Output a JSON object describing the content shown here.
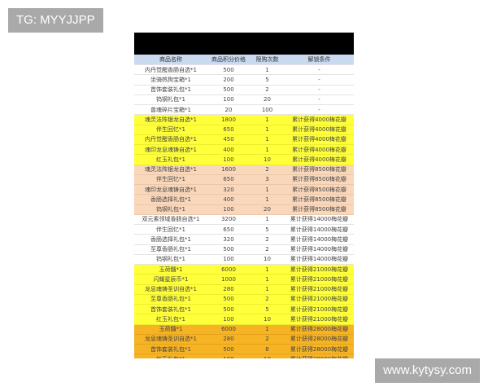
{
  "watermarks": {
    "top_left": "TG: MYYJJPP",
    "bottom_right": "www.kytysy.com"
  },
  "colors": {
    "header": "#c9d9ef",
    "yellow": "#ffff3a",
    "peach": "#f9d7bb",
    "orange": "#f6b324"
  },
  "table": {
    "headers": [
      "商品名称",
      "商品积分价格",
      "限购次数",
      "解锁条件"
    ],
    "rows": [
      {
        "tier": "white",
        "cells": [
          "内丹觉醒香肠自选*1",
          "500",
          "1",
          "-"
        ]
      },
      {
        "tier": "white",
        "cells": [
          "坐骑热狗宝箱*1",
          "200",
          "5",
          "-"
        ]
      },
      {
        "tier": "white",
        "cells": [
          "首饰套装礼包*1",
          "500",
          "2",
          "-"
        ]
      },
      {
        "tier": "white",
        "cells": [
          "钨钢礼包*1",
          "100",
          "20",
          "-"
        ]
      },
      {
        "tier": "white",
        "cells": [
          "兽魂碎片宝箱*1",
          "20",
          "100",
          "-"
        ]
      },
      {
        "tier": "yellow",
        "cells": [
          "魂灵法阵银龙自选*1",
          "1800",
          "1",
          "累计获得4000梅花瓣"
        ]
      },
      {
        "tier": "yellow",
        "cells": [
          "伴生回忆*1",
          "650",
          "1",
          "累计获得4000梅花瓣"
        ]
      },
      {
        "tier": "yellow",
        "cells": [
          "内丹觉醒香肠自选*1",
          "450",
          "1",
          "累计获得4000梅花瓣"
        ]
      },
      {
        "tier": "yellow",
        "cells": [
          "魂印龙息魂铸自选*1",
          "400",
          "1",
          "累计获得4000梅花瓣"
        ]
      },
      {
        "tier": "yellow",
        "cells": [
          "红玉礼包*1",
          "100",
          "10",
          "累计获得4000梅花瓣"
        ]
      },
      {
        "tier": "peach",
        "cells": [
          "魂灵法阵银龙自选*1",
          "1600",
          "2",
          "累计获得8500梅花瓣"
        ]
      },
      {
        "tier": "peach",
        "cells": [
          "伴生回忆*1",
          "650",
          "3",
          "累计获得8500梅花瓣"
        ]
      },
      {
        "tier": "peach",
        "cells": [
          "魂印龙息魂铸自选*1",
          "320",
          "1",
          "累计获得8500梅花瓣"
        ]
      },
      {
        "tier": "peach",
        "cells": [
          "香肠选择礼包*1",
          "400",
          "1",
          "累计获得8500梅花瓣"
        ]
      },
      {
        "tier": "peach",
        "cells": [
          "钨钢礼包*1",
          "100",
          "20",
          "累计获得8500梅花瓣"
        ]
      },
      {
        "tier": "white",
        "cells": [
          "双元素领域香肠自选*1",
          "3200",
          "1",
          "累计获得14000梅花瓣"
        ]
      },
      {
        "tier": "white",
        "cells": [
          "伴生回忆*1",
          "650",
          "5",
          "累计获得14000梅花瓣"
        ]
      },
      {
        "tier": "white",
        "cells": [
          "香肠选择礼包*1",
          "320",
          "2",
          "累计获得14000梅花瓣"
        ]
      },
      {
        "tier": "white",
        "cells": [
          "至尊香肠礼包*1",
          "500",
          "2",
          "累计获得14000梅花瓣"
        ]
      },
      {
        "tier": "white",
        "cells": [
          "钨钢礼包*1",
          "100",
          "10",
          "累计获得14000梅花瓣"
        ]
      },
      {
        "tier": "yellow",
        "cells": [
          "玉荷髓*1",
          "6000",
          "1",
          "累计获得21000梅花瓣"
        ]
      },
      {
        "tier": "yellow",
        "cells": [
          "闪耀星辰币*1",
          "1000",
          "1",
          "累计获得21000梅花瓣"
        ]
      },
      {
        "tier": "yellow",
        "cells": [
          "龙息魂铸圣训自选*1",
          "280",
          "1",
          "累计获得21000梅花瓣"
        ]
      },
      {
        "tier": "yellow",
        "cells": [
          "至尊香肠礼包*1",
          "500",
          "2",
          "累计获得21000梅花瓣"
        ]
      },
      {
        "tier": "yellow",
        "cells": [
          "首饰套装礼包*1",
          "500",
          "5",
          "累计获得21000梅花瓣"
        ]
      },
      {
        "tier": "yellow",
        "cells": [
          "红玉礼包*1",
          "100",
          "10",
          "累计获得21000梅花瓣"
        ]
      },
      {
        "tier": "orange",
        "cells": [
          "玉荷髓*1",
          "6000",
          "1",
          "累计获得28000梅花瓣"
        ]
      },
      {
        "tier": "orange",
        "cells": [
          "龙息魂铸圣训自选*1",
          "280",
          "2",
          "累计获得28000梅花瓣"
        ]
      },
      {
        "tier": "orange",
        "cells": [
          "首饰套装礼包*1",
          "500",
          "8",
          "累计获得28000梅花瓣"
        ]
      },
      {
        "tier": "orange",
        "cells": [
          "红玉礼包*1",
          "100",
          "10",
          "累计获得28000梅花瓣"
        ]
      },
      {
        "tier": "white",
        "cells": [
          "闪耀星辰币*1",
          "1000",
          "2",
          "累计获得33000梅花瓣"
        ]
      },
      {
        "tier": "white",
        "cells": [
          "水晶玉中肠*1",
          "2400",
          "4",
          "累计获得33000梅花瓣"
        ]
      }
    ]
  }
}
